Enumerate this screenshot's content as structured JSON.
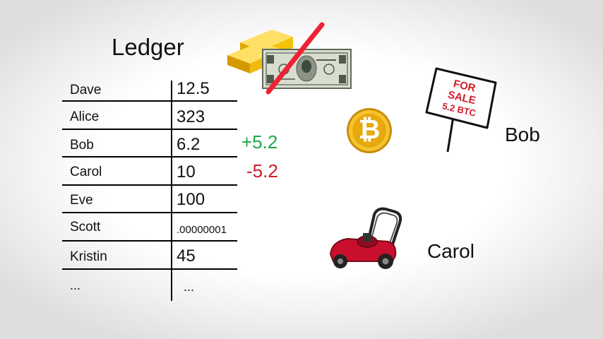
{
  "ledger": {
    "title": "Ledger",
    "rows": [
      {
        "name": "Dave",
        "value": "12.5"
      },
      {
        "name": "Alice",
        "value": "323"
      },
      {
        "name": "Bob",
        "value": "6.2"
      },
      {
        "name": "Carol",
        "value": "10"
      },
      {
        "name": "Eve",
        "value": "100"
      },
      {
        "name": "Scott",
        "value": ".00000001"
      },
      {
        "name": "Kristin",
        "value": "45"
      },
      {
        "name": "...",
        "value": "..."
      }
    ]
  },
  "changes": {
    "bob": "+5.2",
    "carol": "-5.2"
  },
  "sign": {
    "line1": "FOR",
    "line2": "SALE",
    "line3": "5.2 BTC"
  },
  "people": {
    "bob": "Bob",
    "carol": "Carol"
  },
  "bitcoin": {
    "symbol": "₿"
  },
  "colors": {
    "plus": "#1ea84a",
    "minus": "#d01c2b",
    "gold": "#f2b90f",
    "mower": "#c8102e"
  },
  "icons": [
    "gold-bars-icon",
    "dollar-bill-icon",
    "bitcoin-coin-icon",
    "for-sale-sign-icon",
    "lawn-mower-icon"
  ]
}
